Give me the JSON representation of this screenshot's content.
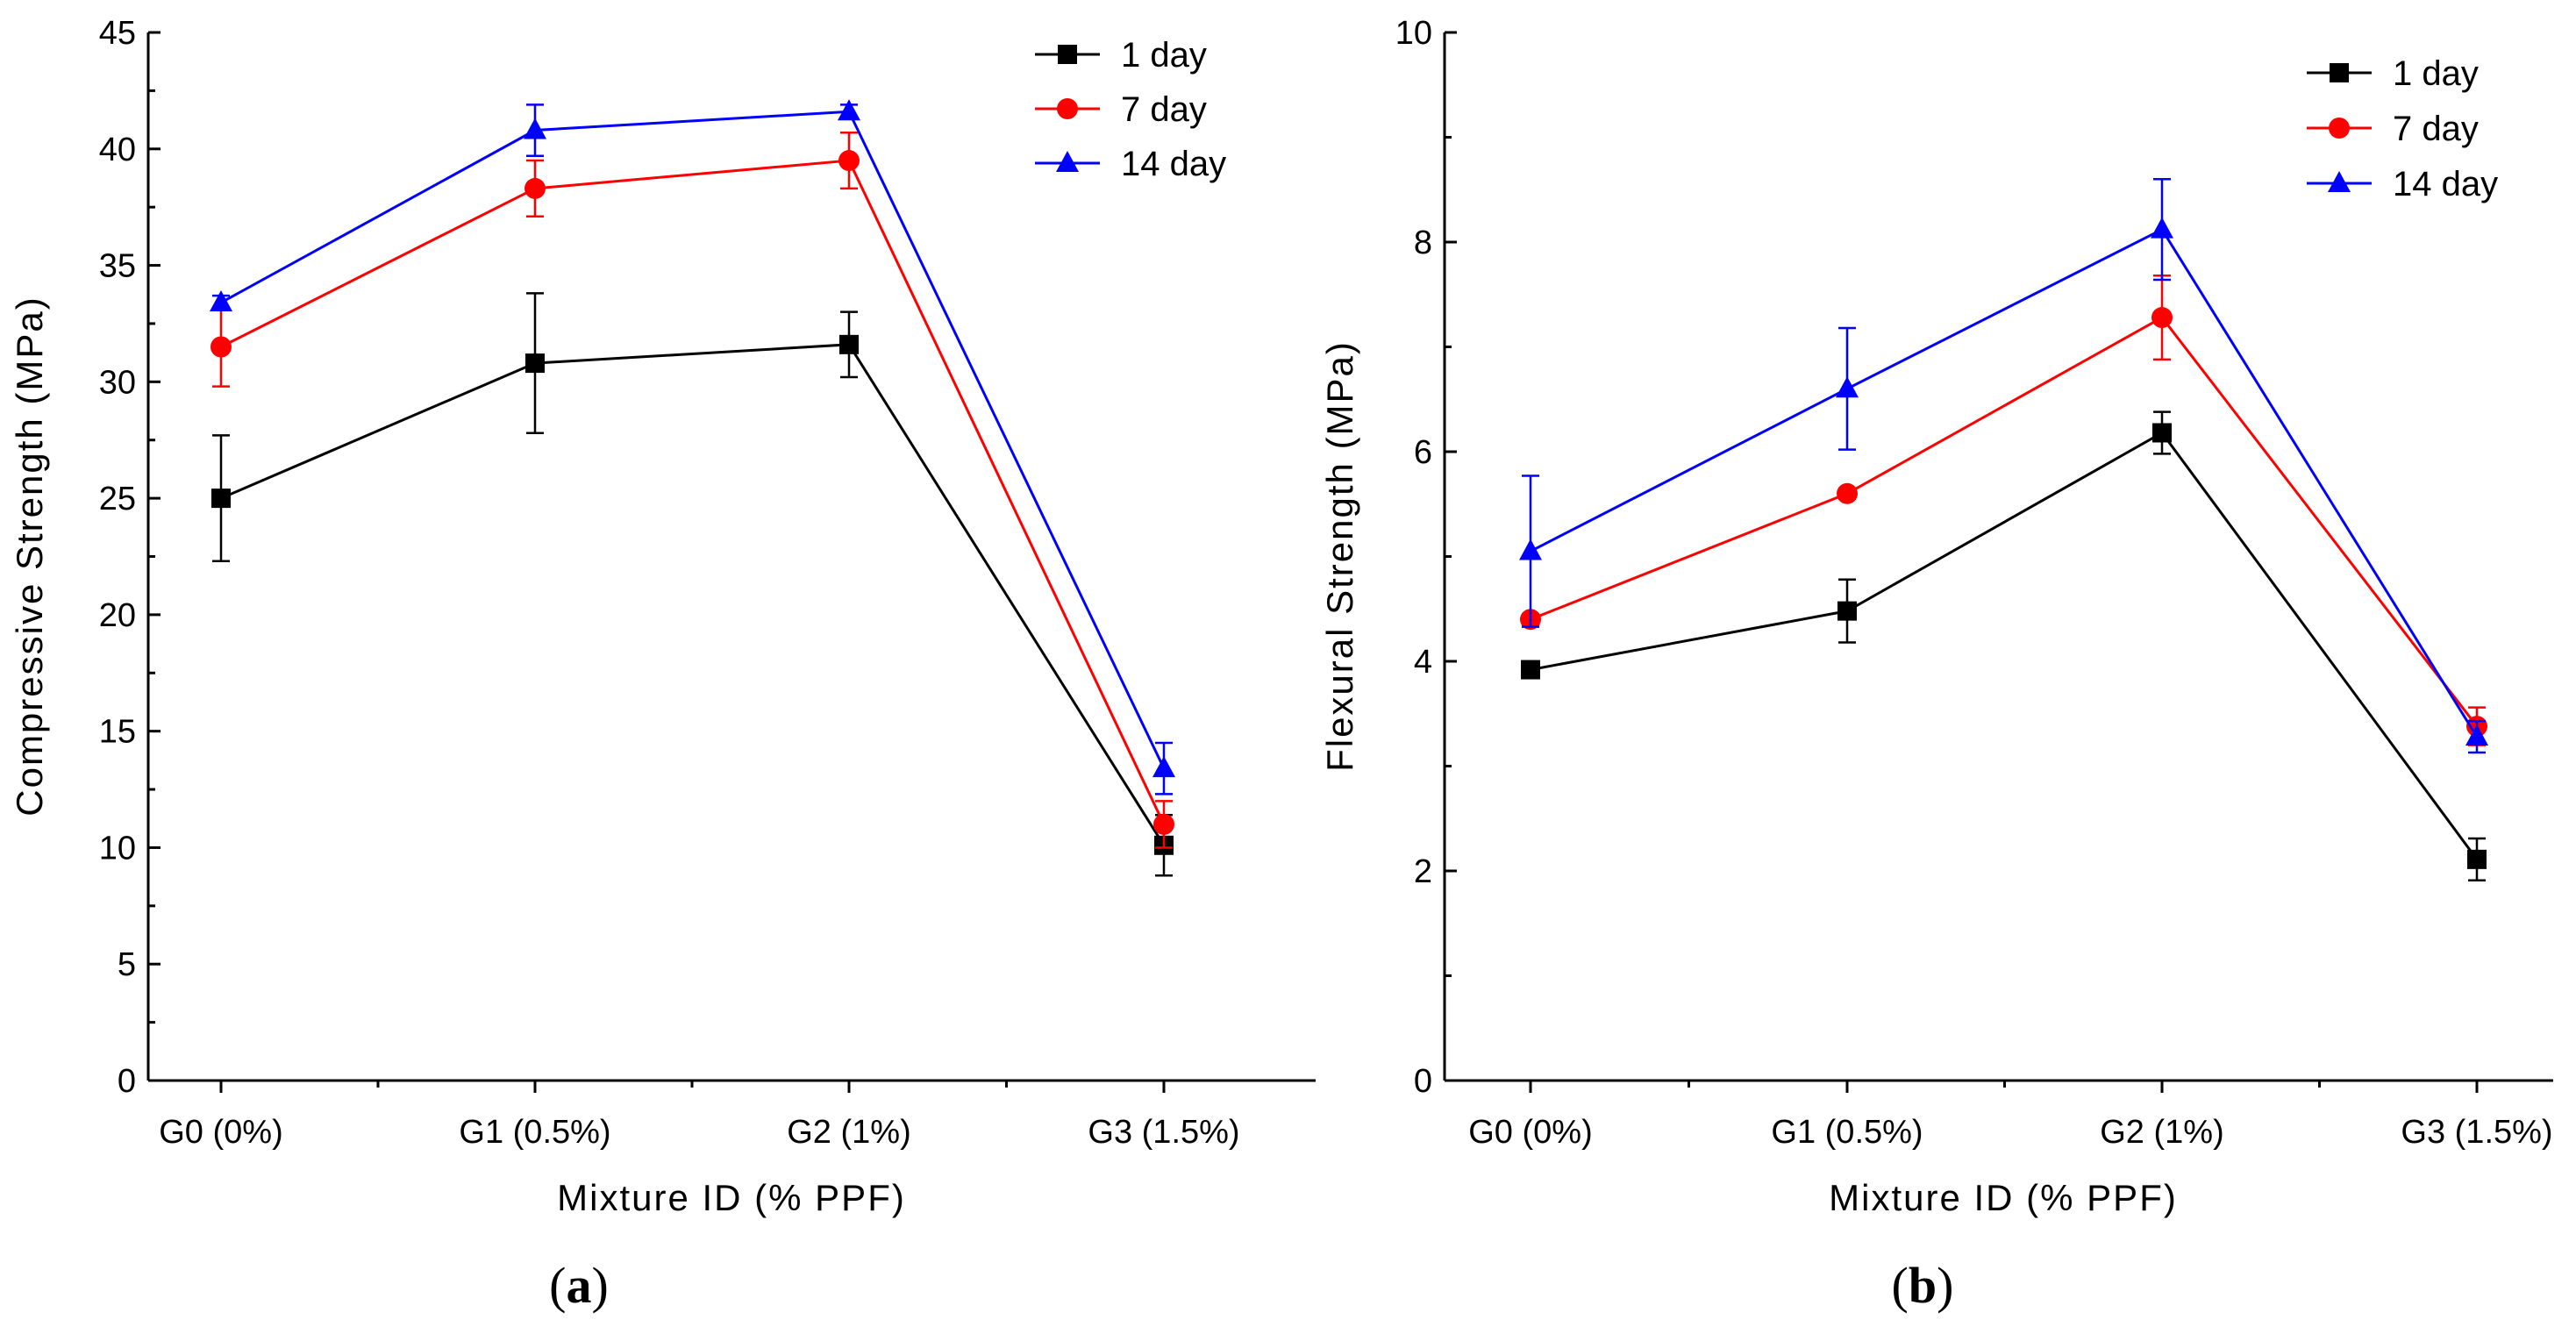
{
  "chart_data": [
    {
      "type": "line",
      "panel_label": "a",
      "title": "",
      "xlabel": "Mixture ID (% PPF)",
      "ylabel": "Compressive Strength (MPa)",
      "categories": [
        "G0 (0%)",
        "G1 (0.5%)",
        "G2 (1%)",
        "G3 (1.5%)"
      ],
      "ylim": [
        0,
        45
      ],
      "yticks": [
        0,
        5,
        10,
        15,
        20,
        25,
        30,
        35,
        40,
        45
      ],
      "legend_position": "top-right",
      "grid": false,
      "series": [
        {
          "name": "1 day",
          "color": "#000000",
          "marker": "square",
          "values": [
            25.0,
            30.8,
            31.6,
            10.1
          ],
          "errors": [
            2.7,
            3.0,
            1.4,
            1.3
          ]
        },
        {
          "name": "7 day",
          "color": "#ff0000",
          "marker": "circle",
          "values": [
            31.5,
            38.3,
            39.5,
            11.0
          ],
          "errors": [
            1.7,
            1.2,
            1.2,
            1.0
          ]
        },
        {
          "name": "14 day",
          "color": "#0000ff",
          "marker": "triangle",
          "values": [
            33.4,
            40.8,
            41.6,
            13.4
          ],
          "errors": [
            0.3,
            1.1,
            0.3,
            1.1
          ]
        }
      ]
    },
    {
      "type": "line",
      "panel_label": "b",
      "title": "",
      "xlabel": "Mixture ID (% PPF)",
      "ylabel": "Flexural Strength (MPa)",
      "categories": [
        "G0 (0%)",
        "G1 (0.5%)",
        "G2 (1%)",
        "G3 (1.5%)"
      ],
      "ylim": [
        0,
        10
      ],
      "yticks": [
        0,
        2,
        4,
        6,
        8,
        10
      ],
      "legend_position": "top-right",
      "grid": false,
      "series": [
        {
          "name": "1 day",
          "color": "#000000",
          "marker": "square",
          "values": [
            3.92,
            4.48,
            6.18,
            2.11
          ],
          "errors": [
            0.05,
            0.3,
            0.2,
            0.2
          ]
        },
        {
          "name": "7 day",
          "color": "#ff0000",
          "marker": "circle",
          "values": [
            4.4,
            5.6,
            7.28,
            3.38
          ],
          "errors": [
            0.05,
            0.05,
            0.4,
            0.18
          ]
        },
        {
          "name": "14 day",
          "color": "#0000ff",
          "marker": "triangle",
          "values": [
            5.05,
            6.6,
            8.12,
            3.28
          ],
          "errors": [
            0.72,
            0.58,
            0.48,
            0.15
          ]
        }
      ]
    }
  ]
}
